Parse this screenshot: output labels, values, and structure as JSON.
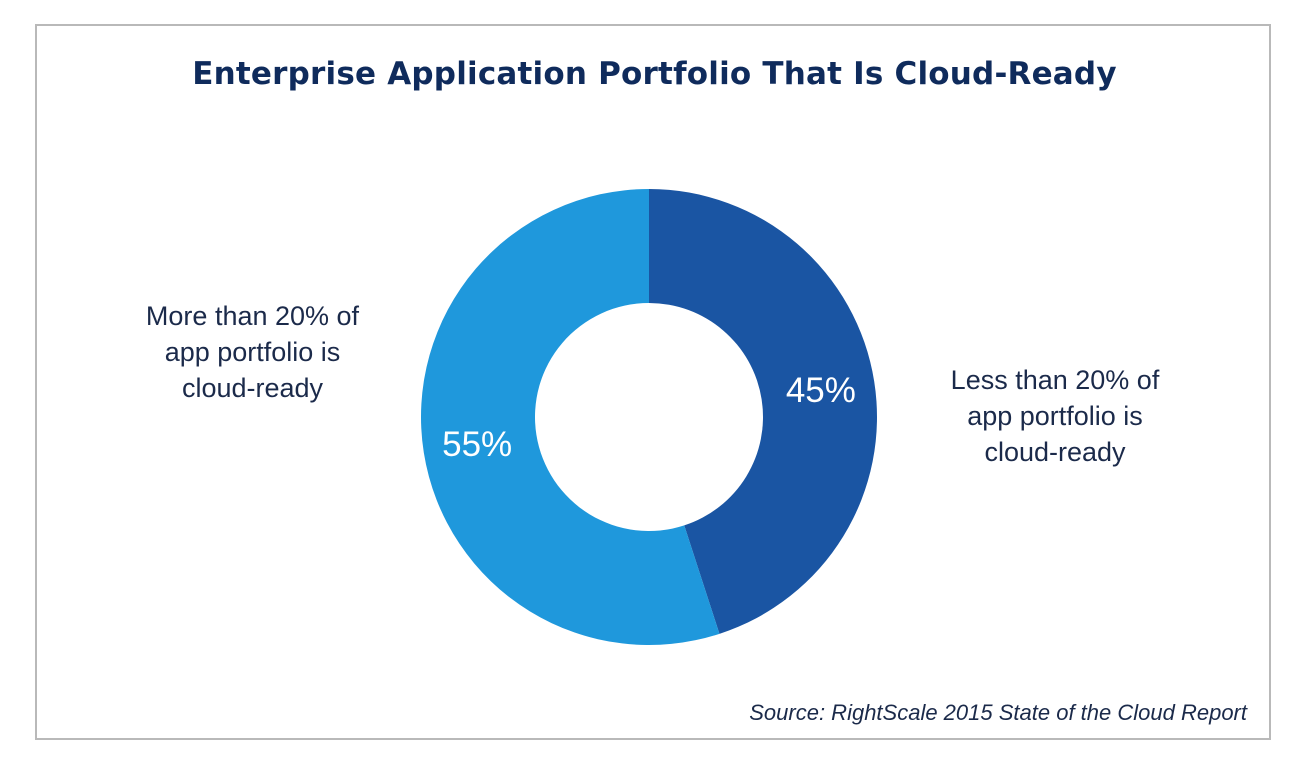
{
  "chart_data": {
    "type": "pie",
    "variant": "donut",
    "title": "Enterprise Application Portfolio That Is Cloud-Ready",
    "slices": [
      {
        "name": "Less than 20% of app portfolio is cloud-ready",
        "label_lines": [
          "Less than 20% of",
          "app portfolio is",
          "cloud-ready"
        ],
        "value": 45,
        "value_label": "45%",
        "color": "#1a55a3"
      },
      {
        "name": "More than 20% of app portfolio is cloud-ready",
        "label_lines": [
          "More than 20% of",
          "app portfolio is",
          "cloud-ready"
        ],
        "value": 55,
        "value_label": "55%",
        "color": "#1f98dc"
      }
    ],
    "source": "Source: RightScale 2015 State of the Cloud Report"
  }
}
